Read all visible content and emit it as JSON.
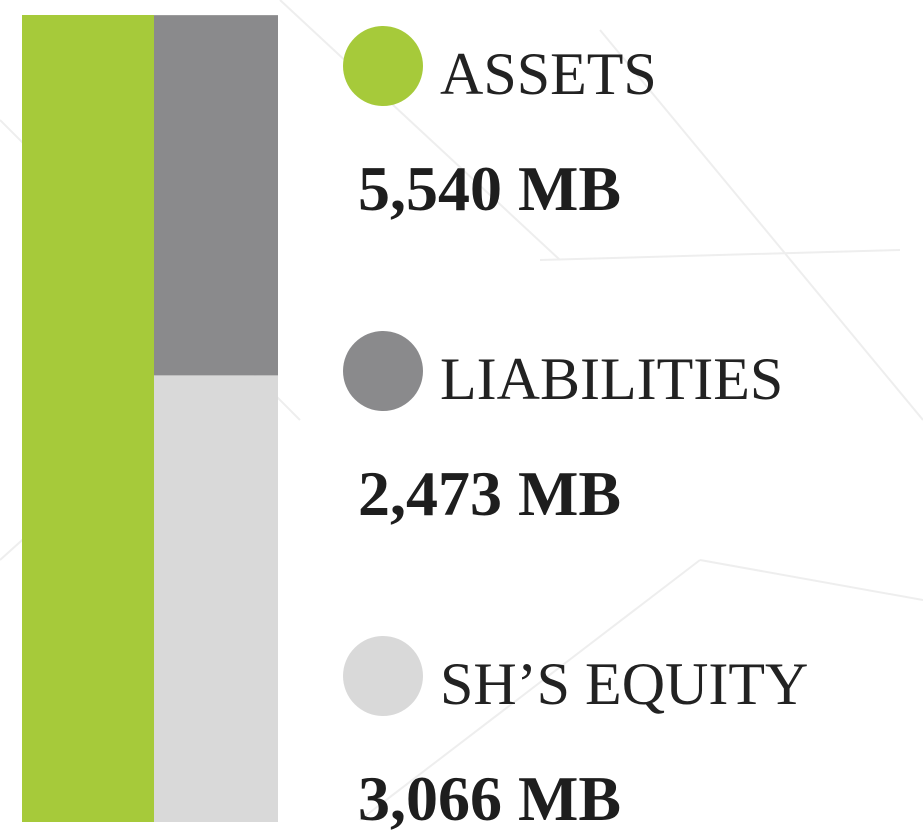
{
  "chart_data": {
    "type": "stacked_bar",
    "categories": [
      null,
      null
    ],
    "series": [
      {
        "name": "ASSETS",
        "color": "#a6ca3a",
        "values": [
          5540,
          null
        ],
        "value_labels": [
          "5,540 MB",
          null
        ]
      },
      {
        "name": "LIABILITIES",
        "color": "#8a8a8c",
        "values": [
          null,
          2473
        ],
        "value_labels": [
          null,
          "2,473 MB"
        ]
      },
      {
        "name": "SH’S EQUITY",
        "color": "#d9d9d9",
        "values": [
          null,
          3066
        ],
        "value_labels": [
          null,
          "3,066 MB"
        ]
      }
    ]
  }
}
